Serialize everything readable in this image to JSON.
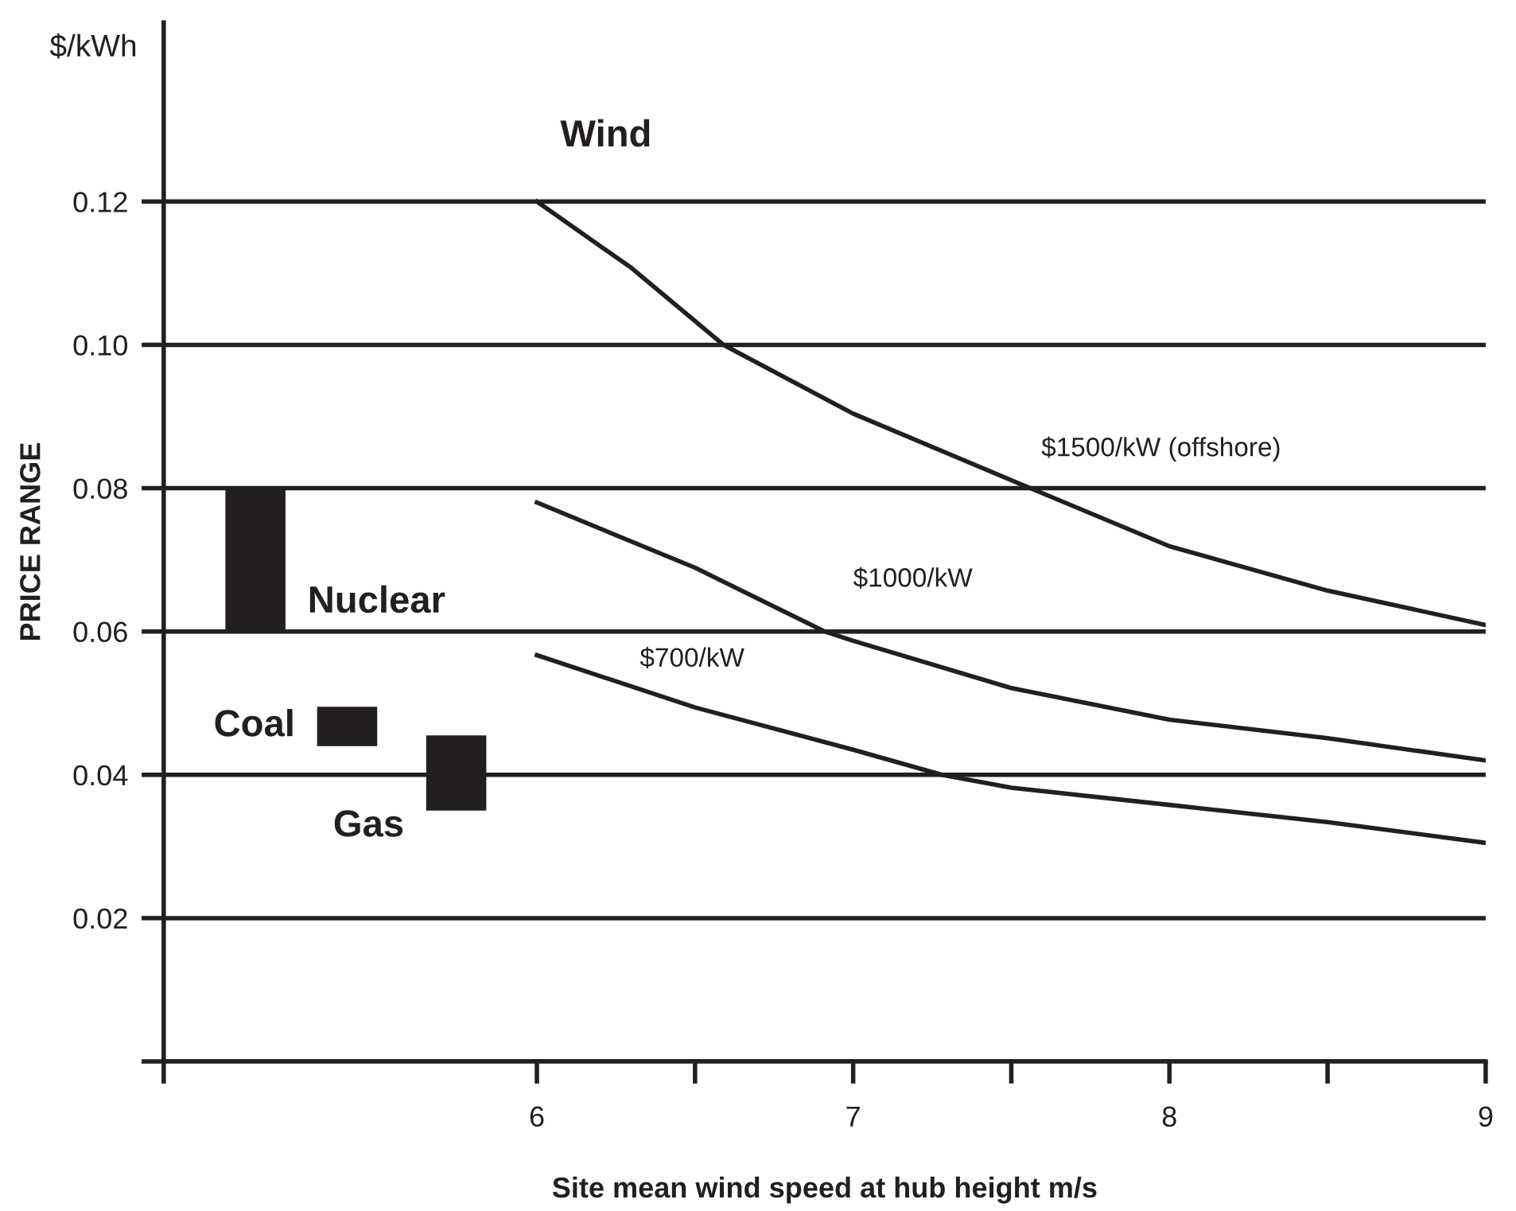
{
  "chart_data": {
    "type": "line",
    "xlabel": "Site mean wind speed at hub height m/s",
    "ylabel": "PRICE RANGE",
    "annotations": [
      "$/kWh",
      "Wind"
    ],
    "xlim": [
      4.82,
      9
    ],
    "xticks": [
      {
        "value": 4.82,
        "label": null
      },
      6,
      {
        "value": 6.5,
        "label": null
      },
      7,
      {
        "value": 7.5,
        "label": null
      },
      8,
      {
        "value": 8.5,
        "label": null
      },
      9
    ],
    "ylim": [
      0,
      0.145
    ],
    "yticks": [
      {
        "value": 0,
        "label": null
      },
      {
        "value": 0.02,
        "label": "0.02"
      },
      {
        "value": 0.04,
        "label": "0.04"
      },
      {
        "value": 0.06,
        "label": "0.06"
      },
      {
        "value": 0.08,
        "label": "0.08"
      },
      {
        "value": 0.1,
        "label": "0.10"
      },
      {
        "value": 0.12,
        "label": "0.12"
      }
    ],
    "grid": "y",
    "series": [
      {
        "name": "Nuclear",
        "type": "bar",
        "color": "#231f20",
        "x": [
          5.11
        ],
        "base": [
          0.06
        ],
        "values": [
          0.02
        ]
      },
      {
        "name": "Coal",
        "type": "bar",
        "color": "#231f20",
        "x": [
          5.4
        ],
        "base": [
          0.044
        ],
        "values": [
          0.0055
        ]
      },
      {
        "name": "Gas",
        "type": "bar",
        "color": "#231f20",
        "x": [
          5.745
        ],
        "base": [
          0.035
        ],
        "values": [
          0.0105
        ]
      },
      {
        "name": "$1500/kW (offshore)",
        "color": "#231f20",
        "x": [
          6,
          6.3,
          6.59,
          7,
          7.56,
          8,
          8.5,
          9
        ],
        "values": [
          0.12,
          0.1107,
          0.1,
          0.0904,
          0.08,
          0.0719,
          0.0657,
          0.0609
        ]
      },
      {
        "name": "$1000/kW",
        "color": "#231f20",
        "x": [
          6,
          6.5,
          6.91,
          7,
          7.5,
          8,
          8.5,
          9
        ],
        "values": [
          0.078,
          0.0689,
          0.06,
          0.0587,
          0.0521,
          0.0477,
          0.0451,
          0.042
        ]
      },
      {
        "name": "$700/kW",
        "color": "#231f20",
        "x": [
          6,
          6.5,
          7,
          7.28,
          7.5,
          8,
          8.5,
          9
        ],
        "values": [
          0.0567,
          0.0494,
          0.0435,
          0.04,
          0.0382,
          0.0358,
          0.0334,
          0.0305
        ]
      }
    ]
  }
}
